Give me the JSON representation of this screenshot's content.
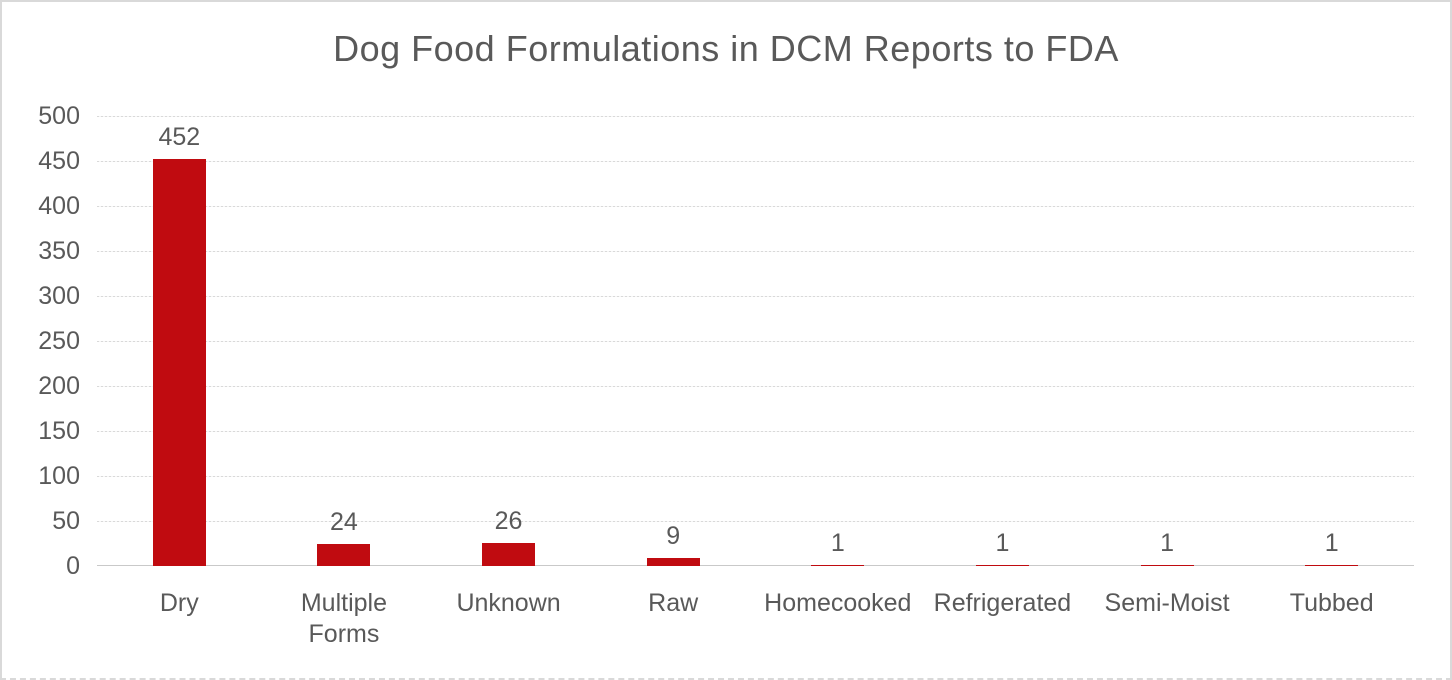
{
  "title": "Dog Food Formulations in DCM Reports to FDA",
  "colors": {
    "bar": "#C00B10",
    "gridline": "#D9D9D9",
    "axis_line": "#C9C9C9",
    "title_text": "#595959",
    "tick_text": "#595959",
    "data_label_text": "#595959",
    "frame_border": "#D9D9D9",
    "background": "#FFFFFF"
  },
  "chart_data": {
    "type": "bar",
    "title": "Dog Food Formulations in DCM Reports to FDA",
    "categories": [
      "Dry",
      "Multiple Forms",
      "Unknown",
      "Raw",
      "Homecooked",
      "Refrigerated",
      "Semi-Moist",
      "Tubbed"
    ],
    "values": [
      452,
      24,
      26,
      9,
      1,
      1,
      1,
      1
    ],
    "data_labels": [
      "452",
      "24",
      "26",
      "9",
      "1",
      "1",
      "1",
      "1"
    ],
    "tick_labels_display": [
      "Dry",
      "Multiple\nForms",
      "Unknown",
      "Raw",
      "Homecooked",
      "Refrigerated",
      "Semi-Moist",
      "Tubbed"
    ],
    "xlabel": "",
    "ylabel": "",
    "ylim": [
      0,
      500
    ],
    "ytick_interval": 50,
    "yticks": [
      0,
      50,
      100,
      150,
      200,
      250,
      300,
      350,
      400,
      450,
      500
    ],
    "grid": "horizontal-only",
    "legend": "none",
    "bar_color": "#C00B10",
    "data_label_position": "outside-end"
  }
}
